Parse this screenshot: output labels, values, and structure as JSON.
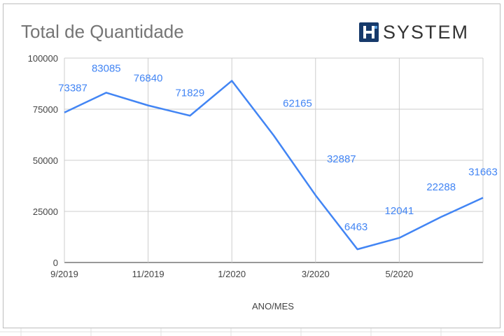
{
  "title": "Total de Quantidade",
  "logo": {
    "text": "SYSTEM",
    "mark_letter": "H",
    "mark_color": "#173a6b"
  },
  "chart_data": {
    "type": "line",
    "title": "Total de Quantidade",
    "xlabel": "ANO/MES",
    "ylabel": "",
    "ylim": [
      0,
      100000
    ],
    "yticks": [
      "0",
      "25000",
      "50000",
      "75000",
      "100000"
    ],
    "xticks": [
      "9/2019",
      "11/2019",
      "1/2020",
      "3/2020",
      "5/2020"
    ],
    "categories": [
      "9/2019",
      "10/2019",
      "11/2019",
      "12/2019",
      "1/2020",
      "2/2020",
      "3/2020",
      "4/2020",
      "5/2020",
      "6/2020",
      "7/2020"
    ],
    "series": [
      {
        "name": "",
        "color": "#4285f4",
        "values": [
          73387,
          83085,
          76840,
          71829,
          88900,
          62165,
          32887,
          6463,
          12041,
          22288,
          31663
        ],
        "labels": [
          "73387",
          "83085",
          "76840",
          "71829",
          "",
          "62165",
          "32887",
          "6463",
          "12041",
          "22288",
          "31663"
        ]
      }
    ],
    "grid": true,
    "legend": "none"
  }
}
